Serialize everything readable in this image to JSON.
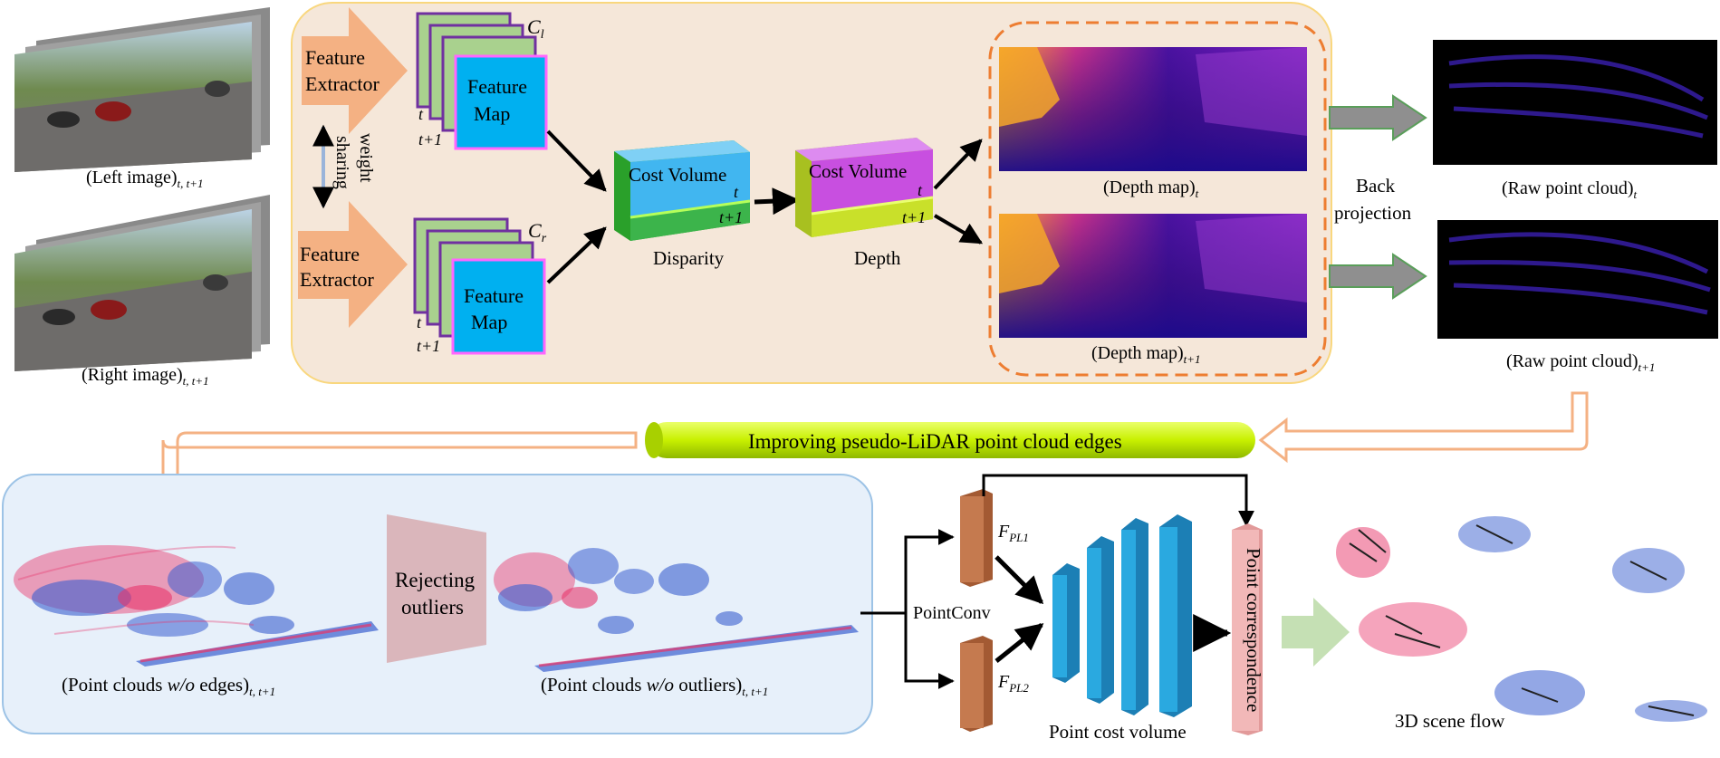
{
  "inputs": {
    "left_image": {
      "label": "(Left image)",
      "sub": "t, t+1"
    },
    "right_image": {
      "label": "(Right image)",
      "sub": "t, t+1"
    }
  },
  "stereo": {
    "feature_extractor_top": [
      "Feature",
      "Extractor"
    ],
    "feature_extractor_bottom": [
      "Feature",
      "Extractor"
    ],
    "weight_sharing": [
      "weight",
      "sharing"
    ],
    "feature_map_top": {
      "label": [
        "Feature",
        "Map"
      ],
      "c": "C",
      "c_sub": "l",
      "t": "t",
      "t1": "t+1"
    },
    "feature_map_bottom": {
      "label": [
        "Feature",
        "Map"
      ],
      "c": "C",
      "c_sub": "r",
      "t": "t",
      "t1": "t+1"
    },
    "cost_volume_disparity": {
      "label": "Cost Volume",
      "t": "t",
      "t1": "t+1",
      "caption": "Disparity"
    },
    "cost_volume_depth": {
      "label": "Cost Volume",
      "t": "t",
      "t1": "t+1",
      "caption": "Depth"
    },
    "depth_map_t": {
      "label": "(Depth map)",
      "sub": "t"
    },
    "depth_map_t1": {
      "label": "(Depth map)",
      "sub": "t+1"
    }
  },
  "back_projection": [
    "Back",
    "projection"
  ],
  "raw_cloud_t": {
    "label": "(Raw point cloud)",
    "sub": "t"
  },
  "raw_cloud_t1": {
    "label": "(Raw point cloud)",
    "sub": "t+1"
  },
  "banner": "Improving pseudo-LiDAR point cloud edges",
  "outliers": {
    "w_o_edges": {
      "pre": "(Point clouds ",
      "italic": "w/o",
      "post": " edges)",
      "sub": "t, t+1"
    },
    "rejecting": [
      "Rejecting",
      "outliers"
    ],
    "w_o_outliers": {
      "pre": "(Point clouds ",
      "italic": "w/o",
      "post": " outliers)",
      "sub": "t, t+1"
    }
  },
  "flow": {
    "pointconv": "PointConv",
    "fpl1": {
      "f": "F",
      "sub": "PL1"
    },
    "fpl2": {
      "f": "F",
      "sub": "PL2"
    },
    "point_cost_volume": "Point cost volume",
    "point_correspondence": "Point correspondence",
    "scene_flow": "3D scene flow"
  },
  "colors": {
    "orange_arrow": "#f4b183",
    "feature_blue": "#00b0f0",
    "feature_border": "#ff66ff",
    "feature_green": "#a9d18e",
    "feature_purple": "#7030a0",
    "cost_blue": "#41b6f0",
    "cost_green": "#3cb44b",
    "cost_purple": "#c84fe0",
    "cost_lime": "#c9e02a",
    "panel_top_fill": "#f5e7d9",
    "panel_top_border": "#f9d77e",
    "panel_bottom_fill": "#e7f0fa",
    "panel_bottom_border": "#9dc3e6",
    "banner_lime": "#c8f000",
    "dashed_orange": "#ed7d31",
    "pink_bar": "#f2b8b8",
    "brown_block": "#c57a4f",
    "blue_block": "#2aa9e0",
    "cloud_red": "#e8356a",
    "cloud_blue": "#3a5fcf"
  }
}
